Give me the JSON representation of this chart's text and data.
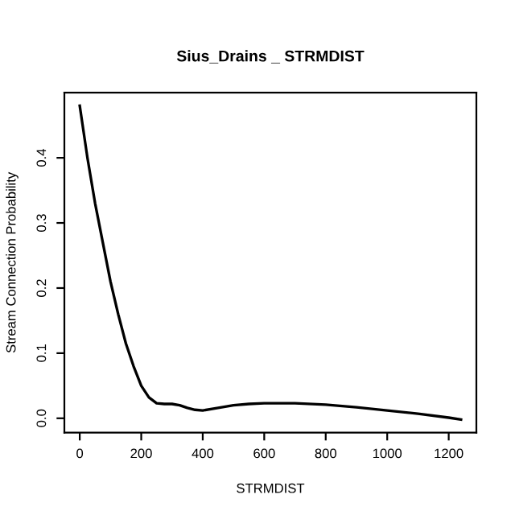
{
  "chart_data": {
    "type": "line",
    "title": "Sius_Drains _ STRMDIST",
    "xlabel": "STRMDIST",
    "ylabel": "Stream Connection Probability",
    "x": [
      0,
      25,
      50,
      75,
      100,
      125,
      150,
      175,
      200,
      225,
      250,
      275,
      300,
      325,
      350,
      375,
      400,
      450,
      500,
      550,
      600,
      700,
      800,
      900,
      1000,
      1100,
      1200,
      1240
    ],
    "series": [
      {
        "color": "#000000",
        "values": [
          0.48,
          0.4,
          0.33,
          0.27,
          0.21,
          0.16,
          0.115,
          0.08,
          0.05,
          0.032,
          0.023,
          0.022,
          0.022,
          0.02,
          0.016,
          0.013,
          0.012,
          0.016,
          0.02,
          0.022,
          0.023,
          0.023,
          0.021,
          0.017,
          0.012,
          0.007,
          0.001,
          -0.002
        ]
      }
    ],
    "xlim": [
      -50,
      1290
    ],
    "ylim": [
      -0.022,
      0.5
    ],
    "xticks": [
      0,
      200,
      400,
      600,
      800,
      1000,
      1200
    ],
    "yticks": [
      {
        "value": 0,
        "label": "0.0"
      },
      0.1,
      0.2,
      0.3,
      0.4
    ],
    "grid": false,
    "legend": false,
    "marker": "none",
    "line_style": "solid"
  }
}
